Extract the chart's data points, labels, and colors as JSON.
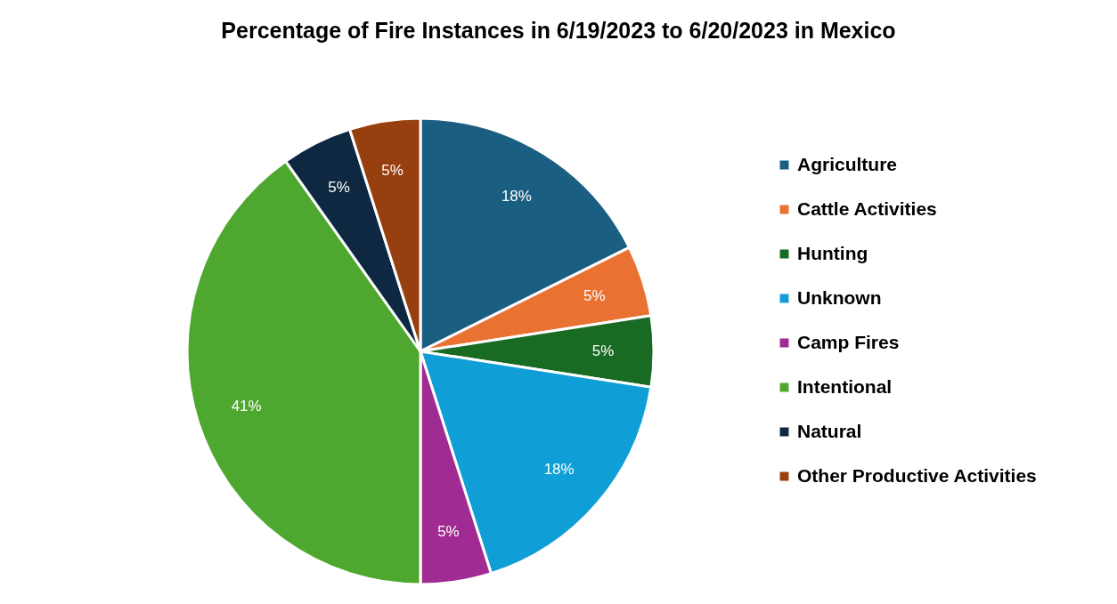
{
  "chart_data": {
    "type": "pie",
    "title": "Percentage of Fire Instances in 6/19/2023 to 6/20/2023 in Mexico",
    "categories": [
      "Agriculture",
      "Cattle Activities",
      "Hunting",
      "Unknown",
      "Camp Fires",
      "Intentional",
      "Natural",
      "Other Productive Activities"
    ],
    "values": [
      18,
      5,
      5,
      18,
      5,
      41,
      5,
      5
    ],
    "value_labels": [
      "18%",
      "5%",
      "5%",
      "18%",
      "5%",
      "41%",
      "5%",
      "5%"
    ],
    "colors": [
      "#1a5e82",
      "#e97132",
      "#196b24",
      "#0f9ed5",
      "#a02b93",
      "#4ea72e",
      "#0e2841",
      "#973f0e"
    ],
    "legend": "right"
  }
}
